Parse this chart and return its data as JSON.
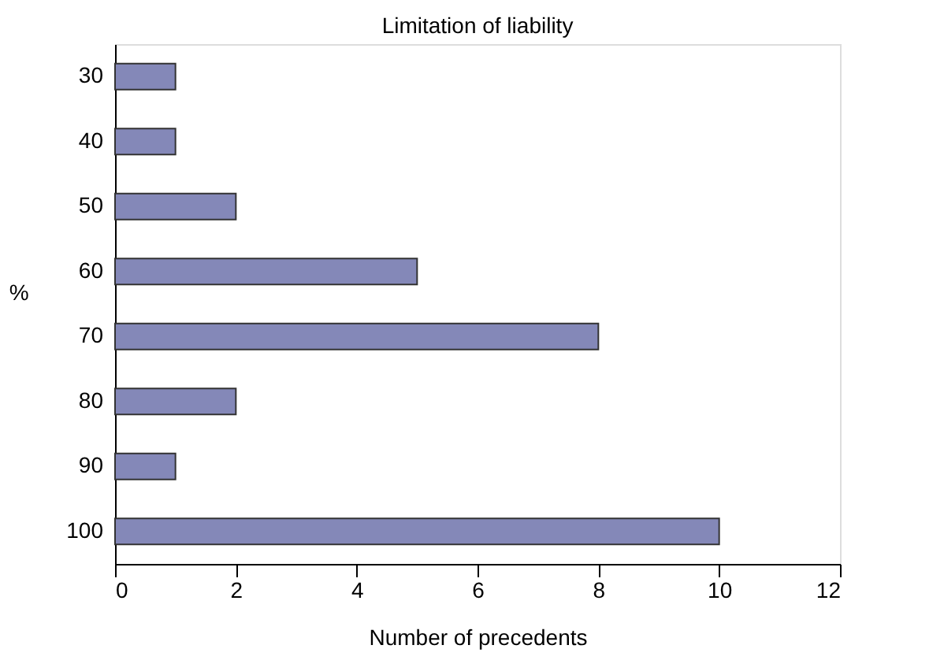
{
  "chart_data": {
    "type": "bar",
    "orientation": "horizontal",
    "title": "Limitation of liability",
    "xlabel": "Number of precedents",
    "ylabel": "%",
    "categories": [
      "30",
      "40",
      "50",
      "60",
      "70",
      "80",
      "90",
      "100"
    ],
    "values": [
      1,
      1,
      2,
      5,
      8,
      2,
      1,
      10
    ],
    "color": "#8488b8",
    "xlim": [
      0,
      12
    ],
    "xticks": [
      0,
      2,
      4,
      6,
      8,
      10,
      12
    ],
    "grid": false
  }
}
